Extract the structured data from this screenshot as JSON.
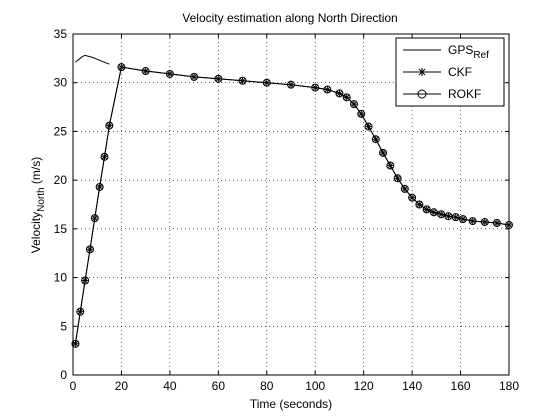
{
  "chart_data": {
    "type": "line",
    "title": "Velocity estimation along North Direction",
    "xlabel": "Time (seconds)",
    "ylabel": {
      "main": "Velocity",
      "sub": "North",
      "suffix": " (m/s)"
    },
    "xlim": [
      0,
      180
    ],
    "ylim": [
      0,
      35
    ],
    "xticks": [
      0,
      20,
      40,
      60,
      80,
      100,
      120,
      140,
      160,
      180
    ],
    "yticks": [
      0,
      5,
      10,
      15,
      20,
      25,
      30,
      35
    ],
    "grid": true,
    "legend_position": "top-right",
    "series": [
      {
        "name": "GPS",
        "name_sub": "Ref",
        "marker": "none",
        "color": "#000000",
        "x": [
          1,
          2,
          4,
          5,
          8,
          10,
          12,
          14,
          15
        ],
        "y": [
          32.1,
          32.3,
          32.7,
          32.8,
          32.6,
          32.4,
          32.2,
          32.0,
          31.9
        ]
      },
      {
        "name": "CKF",
        "marker": "star",
        "color": "#000000",
        "x": [
          1,
          3,
          5,
          7,
          9,
          11,
          13,
          15,
          20,
          30,
          40,
          50,
          60,
          70,
          80,
          90,
          100,
          105,
          110,
          113,
          116,
          119,
          122,
          125,
          128,
          131,
          134,
          137,
          140,
          143,
          146,
          149,
          152,
          155,
          158,
          161,
          165,
          170,
          175,
          180
        ],
        "y": [
          3.2,
          6.5,
          9.7,
          12.9,
          16.1,
          19.3,
          22.4,
          25.6,
          31.6,
          31.2,
          30.9,
          30.6,
          30.4,
          30.2,
          30.0,
          29.8,
          29.5,
          29.3,
          28.9,
          28.5,
          27.8,
          26.8,
          25.5,
          24.2,
          22.8,
          21.5,
          20.2,
          19.1,
          18.2,
          17.5,
          17.0,
          16.7,
          16.5,
          16.3,
          16.2,
          16.0,
          15.8,
          15.7,
          15.6,
          15.4
        ]
      },
      {
        "name": "ROKF",
        "marker": "circle",
        "color": "#000000",
        "x": [
          1,
          3,
          5,
          7,
          9,
          11,
          13,
          15,
          20,
          30,
          40,
          50,
          60,
          70,
          80,
          90,
          100,
          105,
          110,
          113,
          116,
          119,
          122,
          125,
          128,
          131,
          134,
          137,
          140,
          143,
          146,
          149,
          152,
          155,
          158,
          161,
          165,
          170,
          175,
          180
        ],
        "y": [
          3.2,
          6.5,
          9.7,
          12.9,
          16.1,
          19.3,
          22.4,
          25.6,
          31.6,
          31.2,
          30.9,
          30.6,
          30.4,
          30.2,
          30.0,
          29.8,
          29.5,
          29.3,
          28.9,
          28.5,
          27.8,
          26.8,
          25.5,
          24.2,
          22.8,
          21.5,
          20.2,
          19.1,
          18.2,
          17.5,
          17.0,
          16.7,
          16.5,
          16.3,
          16.2,
          16.0,
          15.8,
          15.7,
          15.6,
          15.4
        ]
      }
    ]
  }
}
